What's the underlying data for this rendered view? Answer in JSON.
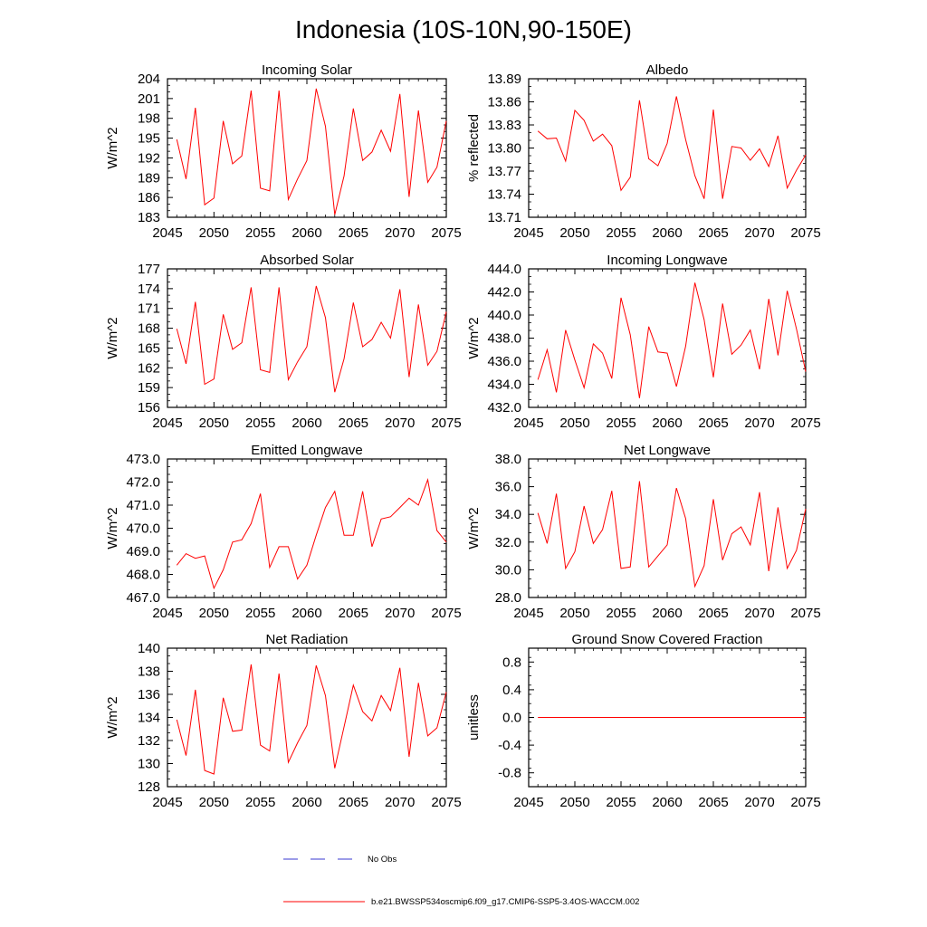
{
  "figure_title": "Indonesia (10S-10N,90-150E)",
  "legend": {
    "obs_label": "No Obs",
    "model_label": "b.e21.BWSSP534oscmip6.f09_g17.CMIP6-SSP5-3.4OS-WACCM.002",
    "obs_color": "#3a3ad0",
    "model_color": "#ff0000"
  },
  "chart_data": [
    {
      "type": "line",
      "title": "Incoming Solar",
      "ylabel": "W/m^2",
      "xlim": [
        2045,
        2075
      ],
      "ylim": [
        183,
        204
      ],
      "xticks": [
        "2045",
        "2050",
        "2055",
        "2060",
        "2065",
        "2070",
        "2075"
      ],
      "yticks": [
        "183",
        "186",
        "189",
        "192",
        "195",
        "198",
        "201",
        "204"
      ],
      "x": [
        2046,
        2047,
        2048,
        2049,
        2050,
        2051,
        2052,
        2053,
        2054,
        2055,
        2056,
        2057,
        2058,
        2059,
        2060,
        2061,
        2062,
        2063,
        2064,
        2065,
        2066,
        2067,
        2068,
        2069,
        2070,
        2071,
        2072,
        2073,
        2074,
        2075
      ],
      "series": [
        {
          "name": "b.e21.BWSSP534oscmip6.f09_g17.CMIP6-SSP5-3.4OS-WACCM.002",
          "color": "#ff0000",
          "values": [
            194.8,
            188.8,
            199.6,
            184.9,
            185.9,
            197.6,
            191.1,
            192.3,
            202.2,
            187.4,
            187.0,
            202.2,
            185.7,
            188.8,
            191.6,
            202.5,
            196.8,
            183.4,
            189.3,
            199.5,
            191.6,
            192.9,
            196.2,
            193.0,
            201.7,
            186.1,
            199.2,
            188.3,
            190.6,
            197.6
          ]
        }
      ]
    },
    {
      "type": "line",
      "title": "Albedo",
      "ylabel": "% reflected",
      "xlim": [
        2045,
        2075
      ],
      "ylim": [
        13.71,
        13.89
      ],
      "xticks": [
        "2045",
        "2050",
        "2055",
        "2060",
        "2065",
        "2070",
        "2075"
      ],
      "yticks": [
        "13.71",
        "13.74",
        "13.77",
        "13.80",
        "13.83",
        "13.86",
        "13.89"
      ],
      "x": [
        2046,
        2047,
        2048,
        2049,
        2050,
        2051,
        2052,
        2053,
        2054,
        2055,
        2056,
        2057,
        2058,
        2059,
        2060,
        2061,
        2062,
        2063,
        2064,
        2065,
        2066,
        2067,
        2068,
        2069,
        2070,
        2071,
        2072,
        2073,
        2074,
        2075
      ],
      "series": [
        {
          "name": "b.e21.BWSSP534oscmip6.f09_g17.CMIP6-SSP5-3.4OS-WACCM.002",
          "color": "#ff0000",
          "values": [
            13.822,
            13.812,
            13.813,
            13.783,
            13.849,
            13.836,
            13.809,
            13.818,
            13.803,
            13.745,
            13.762,
            13.862,
            13.786,
            13.777,
            13.806,
            13.867,
            13.811,
            13.764,
            13.734,
            13.85,
            13.734,
            13.802,
            13.8,
            13.784,
            13.799,
            13.776,
            13.816,
            13.748,
            13.771,
            13.791
          ]
        }
      ]
    },
    {
      "type": "line",
      "title": "Absorbed Solar",
      "ylabel": "W/m^2",
      "xlim": [
        2045,
        2075
      ],
      "ylim": [
        156,
        177
      ],
      "xticks": [
        "2045",
        "2050",
        "2055",
        "2060",
        "2065",
        "2070",
        "2075"
      ],
      "yticks": [
        "156",
        "159",
        "162",
        "165",
        "168",
        "171",
        "174",
        "177"
      ],
      "x": [
        2046,
        2047,
        2048,
        2049,
        2050,
        2051,
        2052,
        2053,
        2054,
        2055,
        2056,
        2057,
        2058,
        2059,
        2060,
        2061,
        2062,
        2063,
        2064,
        2065,
        2066,
        2067,
        2068,
        2069,
        2070,
        2071,
        2072,
        2073,
        2074,
        2075
      ],
      "series": [
        {
          "name": "b.e21.BWSSP534oscmip6.f09_g17.CMIP6-SSP5-3.4OS-WACCM.002",
          "color": "#ff0000",
          "values": [
            167.9,
            162.6,
            172.0,
            159.5,
            160.3,
            170.1,
            164.8,
            165.8,
            174.2,
            161.7,
            161.3,
            174.2,
            160.2,
            162.9,
            165.2,
            174.4,
            169.6,
            158.3,
            163.4,
            171.9,
            165.2,
            166.3,
            168.9,
            166.5,
            173.9,
            160.6,
            171.6,
            162.4,
            164.5,
            170.5
          ]
        }
      ]
    },
    {
      "type": "line",
      "title": "Incoming Longwave",
      "ylabel": "W/m^2",
      "xlim": [
        2045,
        2075
      ],
      "ylim": [
        432.0,
        444.0
      ],
      "xticks": [
        "2045",
        "2050",
        "2055",
        "2060",
        "2065",
        "2070",
        "2075"
      ],
      "yticks": [
        "432.0",
        "434.0",
        "436.0",
        "438.0",
        "440.0",
        "442.0",
        "444.0"
      ],
      "x": [
        2046,
        2047,
        2048,
        2049,
        2050,
        2051,
        2052,
        2053,
        2054,
        2055,
        2056,
        2057,
        2058,
        2059,
        2060,
        2061,
        2062,
        2063,
        2064,
        2065,
        2066,
        2067,
        2068,
        2069,
        2070,
        2071,
        2072,
        2073,
        2074,
        2075
      ],
      "series": [
        {
          "name": "b.e21.BWSSP534oscmip6.f09_g17.CMIP6-SSP5-3.4OS-WACCM.002",
          "color": "#ff0000",
          "values": [
            434.4,
            437.0,
            433.3,
            438.7,
            436.1,
            433.7,
            437.5,
            436.7,
            434.5,
            441.5,
            438.3,
            432.8,
            439.0,
            436.8,
            436.7,
            433.8,
            437.3,
            442.8,
            439.6,
            434.6,
            441.0,
            436.6,
            437.4,
            438.7,
            435.3,
            441.4,
            436.5,
            442.1,
            438.8,
            435.1
          ]
        }
      ]
    },
    {
      "type": "line",
      "title": "Emitted Longwave",
      "ylabel": "W/m^2",
      "xlim": [
        2045,
        2075
      ],
      "ylim": [
        467.0,
        473.0
      ],
      "xticks": [
        "2045",
        "2050",
        "2055",
        "2060",
        "2065",
        "2070",
        "2075"
      ],
      "yticks": [
        "467.0",
        "468.0",
        "469.0",
        "470.0",
        "471.0",
        "472.0",
        "473.0"
      ],
      "x": [
        2046,
        2047,
        2048,
        2049,
        2050,
        2051,
        2052,
        2053,
        2054,
        2055,
        2056,
        2057,
        2058,
        2059,
        2060,
        2061,
        2062,
        2063,
        2064,
        2065,
        2066,
        2067,
        2068,
        2069,
        2070,
        2071,
        2072,
        2073,
        2074,
        2075
      ],
      "series": [
        {
          "name": "b.e21.BWSSP534oscmip6.f09_g17.CMIP6-SSP5-3.4OS-WACCM.002",
          "color": "#ff0000",
          "values": [
            468.4,
            468.9,
            468.7,
            468.8,
            467.4,
            468.2,
            469.4,
            469.5,
            470.2,
            471.5,
            468.3,
            469.2,
            469.2,
            467.8,
            468.4,
            469.7,
            470.9,
            471.6,
            469.7,
            469.7,
            471.6,
            469.2,
            470.4,
            470.5,
            470.9,
            471.3,
            471.0,
            472.1,
            469.9,
            469.4
          ]
        }
      ]
    },
    {
      "type": "line",
      "title": "Net Longwave",
      "ylabel": "W/m^2",
      "xlim": [
        2045,
        2075
      ],
      "ylim": [
        28.0,
        38.0
      ],
      "xticks": [
        "2045",
        "2050",
        "2055",
        "2060",
        "2065",
        "2070",
        "2075"
      ],
      "yticks": [
        "28.0",
        "30.0",
        "32.0",
        "34.0",
        "36.0",
        "38.0"
      ],
      "x": [
        2046,
        2047,
        2048,
        2049,
        2050,
        2051,
        2052,
        2053,
        2054,
        2055,
        2056,
        2057,
        2058,
        2059,
        2060,
        2061,
        2062,
        2063,
        2064,
        2065,
        2066,
        2067,
        2068,
        2069,
        2070,
        2071,
        2072,
        2073,
        2074,
        2075
      ],
      "series": [
        {
          "name": "b.e21.BWSSP534oscmip6.f09_g17.CMIP6-SSP5-3.4OS-WACCM.002",
          "color": "#ff0000",
          "values": [
            34.1,
            31.9,
            35.5,
            30.1,
            31.3,
            34.6,
            31.9,
            32.9,
            35.7,
            30.1,
            30.2,
            36.4,
            30.2,
            31.0,
            31.8,
            35.9,
            33.7,
            28.8,
            30.3,
            35.1,
            30.7,
            32.6,
            33.1,
            31.8,
            35.6,
            29.9,
            34.5,
            30.1,
            31.4,
            34.4
          ]
        }
      ]
    },
    {
      "type": "line",
      "title": "Net Radiation",
      "ylabel": "W/m^2",
      "xlim": [
        2045,
        2075
      ],
      "ylim": [
        128,
        140
      ],
      "xticks": [
        "2045",
        "2050",
        "2055",
        "2060",
        "2065",
        "2070",
        "2075"
      ],
      "yticks": [
        "128",
        "130",
        "132",
        "134",
        "136",
        "138",
        "140"
      ],
      "x": [
        2046,
        2047,
        2048,
        2049,
        2050,
        2051,
        2052,
        2053,
        2054,
        2055,
        2056,
        2057,
        2058,
        2059,
        2060,
        2061,
        2062,
        2063,
        2064,
        2065,
        2066,
        2067,
        2068,
        2069,
        2070,
        2071,
        2072,
        2073,
        2074,
        2075
      ],
      "series": [
        {
          "name": "b.e21.BWSSP534oscmip6.f09_g17.CMIP6-SSP5-3.4OS-WACCM.002",
          "color": "#ff0000",
          "values": [
            133.8,
            130.7,
            136.4,
            129.4,
            129.1,
            135.7,
            132.8,
            132.9,
            138.6,
            131.6,
            131.1,
            137.8,
            130.1,
            131.8,
            133.3,
            138.5,
            135.9,
            129.6,
            133.2,
            136.8,
            134.5,
            133.7,
            135.9,
            134.6,
            138.3,
            130.6,
            137.0,
            132.4,
            133.1,
            136.2
          ]
        }
      ]
    },
    {
      "type": "line",
      "title": "Ground Snow Covered Fraction",
      "ylabel": "unitless",
      "xlim": [
        2045,
        2075
      ],
      "ylim": [
        -1.0,
        1.0
      ],
      "xticks": [
        "2045",
        "2050",
        "2055",
        "2060",
        "2065",
        "2070",
        "2075"
      ],
      "yticks": [
        "-0.8",
        "-0.4",
        "0.0",
        "0.4",
        "0.8"
      ],
      "ytick_values": [
        -0.8,
        -0.4,
        0.0,
        0.4,
        0.8
      ],
      "x": [
        2046,
        2075
      ],
      "series": [
        {
          "name": "b.e21.BWSSP534oscmip6.f09_g17.CMIP6-SSP5-3.4OS-WACCM.002",
          "color": "#ff0000",
          "values": [
            0.0,
            0.0
          ]
        }
      ]
    }
  ]
}
